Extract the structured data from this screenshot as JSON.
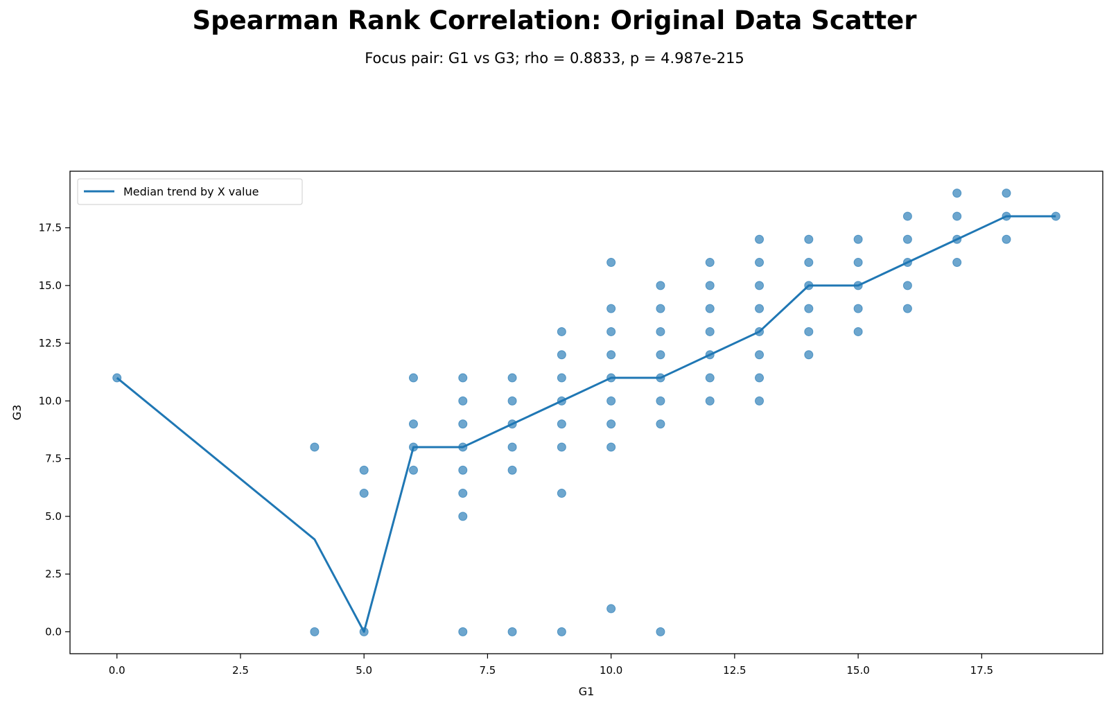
{
  "chart_data": {
    "type": "scatter",
    "title": "Spearman Rank Correlation: Original Data Scatter",
    "subtitle": "Focus pair: G1 vs G3; rho = 0.8833, p = 4.987e-215",
    "xlabel": "G1",
    "ylabel": "G3",
    "xlim": [
      -0.95,
      19.95
    ],
    "ylim": [
      -0.95,
      19.95
    ],
    "xticks": [
      0.0,
      2.5,
      5.0,
      7.5,
      10.0,
      12.5,
      15.0,
      17.5
    ],
    "yticks": [
      0.0,
      2.5,
      5.0,
      7.5,
      10.0,
      12.5,
      15.0,
      17.5
    ],
    "xtick_labels": [
      "0.0",
      "2.5",
      "5.0",
      "7.5",
      "10.0",
      "12.5",
      "15.0",
      "17.5"
    ],
    "ytick_labels": [
      "0.0",
      "2.5",
      "5.0",
      "7.5",
      "10.0",
      "12.5",
      "15.0",
      "17.5"
    ],
    "grid": false,
    "legend_position": "upper-left",
    "point_color": "#1f77b4",
    "line_color": "#1f77b4",
    "series": [
      {
        "kind": "points",
        "points": [
          [
            0,
            11
          ],
          [
            4,
            8
          ],
          [
            4,
            0
          ],
          [
            5,
            7
          ],
          [
            5,
            6
          ],
          [
            5,
            0
          ],
          [
            6,
            11
          ],
          [
            6,
            9
          ],
          [
            6,
            8
          ],
          [
            6,
            7
          ],
          [
            7,
            11
          ],
          [
            7,
            10
          ],
          [
            7,
            9
          ],
          [
            7,
            8
          ],
          [
            7,
            7
          ],
          [
            7,
            6
          ],
          [
            7,
            5
          ],
          [
            7,
            0
          ],
          [
            8,
            11
          ],
          [
            8,
            10
          ],
          [
            8,
            9
          ],
          [
            8,
            8
          ],
          [
            8,
            7
          ],
          [
            8,
            0
          ],
          [
            9,
            13
          ],
          [
            9,
            12
          ],
          [
            9,
            11
          ],
          [
            9,
            10
          ],
          [
            9,
            9
          ],
          [
            9,
            8
          ],
          [
            9,
            6
          ],
          [
            9,
            0
          ],
          [
            10,
            16
          ],
          [
            10,
            14
          ],
          [
            10,
            13
          ],
          [
            10,
            12
          ],
          [
            10,
            11
          ],
          [
            10,
            10
          ],
          [
            10,
            9
          ],
          [
            10,
            8
          ],
          [
            10,
            1
          ],
          [
            11,
            15
          ],
          [
            11,
            14
          ],
          [
            11,
            13
          ],
          [
            11,
            12
          ],
          [
            11,
            11
          ],
          [
            11,
            10
          ],
          [
            11,
            9
          ],
          [
            11,
            0
          ],
          [
            12,
            16
          ],
          [
            12,
            15
          ],
          [
            12,
            14
          ],
          [
            12,
            13
          ],
          [
            12,
            12
          ],
          [
            12,
            11
          ],
          [
            12,
            10
          ],
          [
            13,
            17
          ],
          [
            13,
            16
          ],
          [
            13,
            15
          ],
          [
            13,
            14
          ],
          [
            13,
            13
          ],
          [
            13,
            12
          ],
          [
            13,
            11
          ],
          [
            13,
            10
          ],
          [
            14,
            17
          ],
          [
            14,
            16
          ],
          [
            14,
            15
          ],
          [
            14,
            14
          ],
          [
            14,
            13
          ],
          [
            14,
            12
          ],
          [
            15,
            17
          ],
          [
            15,
            16
          ],
          [
            15,
            15
          ],
          [
            15,
            14
          ],
          [
            15,
            13
          ],
          [
            16,
            18
          ],
          [
            16,
            17
          ],
          [
            16,
            16
          ],
          [
            16,
            15
          ],
          [
            16,
            14
          ],
          [
            17,
            19
          ],
          [
            17,
            18
          ],
          [
            17,
            17
          ],
          [
            17,
            16
          ],
          [
            18,
            19
          ],
          [
            18,
            18
          ],
          [
            18,
            17
          ],
          [
            19,
            18
          ]
        ]
      },
      {
        "kind": "line",
        "name": "Median trend by X value",
        "x": [
          0,
          4,
          5,
          6,
          7,
          8,
          9,
          10,
          11,
          12,
          13,
          14,
          15,
          16,
          17,
          18,
          19
        ],
        "y": [
          11,
          4,
          0,
          8,
          8,
          9,
          10,
          11,
          11,
          12,
          13,
          15,
          15,
          16,
          17,
          18,
          18
        ]
      }
    ]
  }
}
